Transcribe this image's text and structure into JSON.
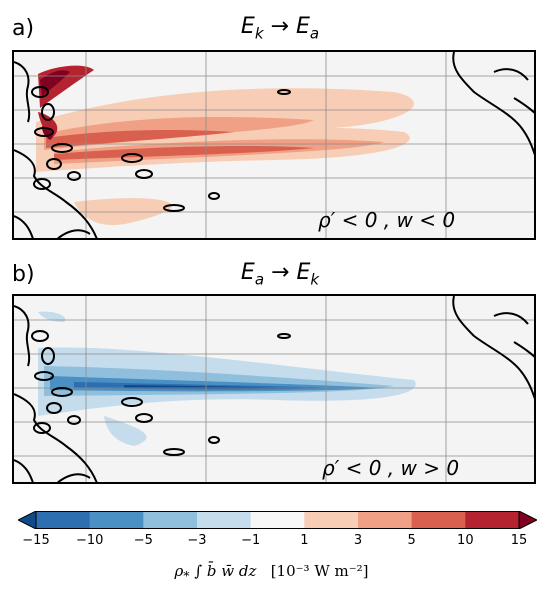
{
  "panels": [
    {
      "letter": "a)",
      "title_from": "E",
      "title_from_sub": "k",
      "title_arrow": "→",
      "title_to": "E",
      "title_to_sub": "a",
      "annotation": "ρ′ < 0 , w < 0",
      "sign": "positive"
    },
    {
      "letter": "b)",
      "title_from": "E",
      "title_from_sub": "a",
      "title_arrow": "→",
      "title_to": "E",
      "title_to_sub": "k",
      "annotation": "ρ′ < 0 , w > 0",
      "sign": "negative"
    }
  ],
  "chart_data": {
    "type": "heatmap",
    "colorbar": {
      "levels": [
        -15,
        -10,
        -5,
        -3,
        -1,
        1,
        3,
        5,
        10,
        15
      ],
      "tick_labels": [
        "−15",
        "−10",
        "−5",
        "−3",
        "−1",
        "1",
        "3",
        "5",
        "10",
        "15"
      ],
      "colors": [
        "#0f4b8a",
        "#2d6fb0",
        "#4a90c4",
        "#8fbfdc",
        "#c5dcec",
        "#f7f7f7",
        "#f8cdb6",
        "#f0a084",
        "#d9604e",
        "#b62330",
        "#7f0020"
      ],
      "extend": "both",
      "label_lead": "ρ",
      "label_lead_sub": "*",
      "label_expr": "∫ b̄ w̄ dz",
      "label_units": "[10⁻³ W m⁻²]"
    }
  }
}
